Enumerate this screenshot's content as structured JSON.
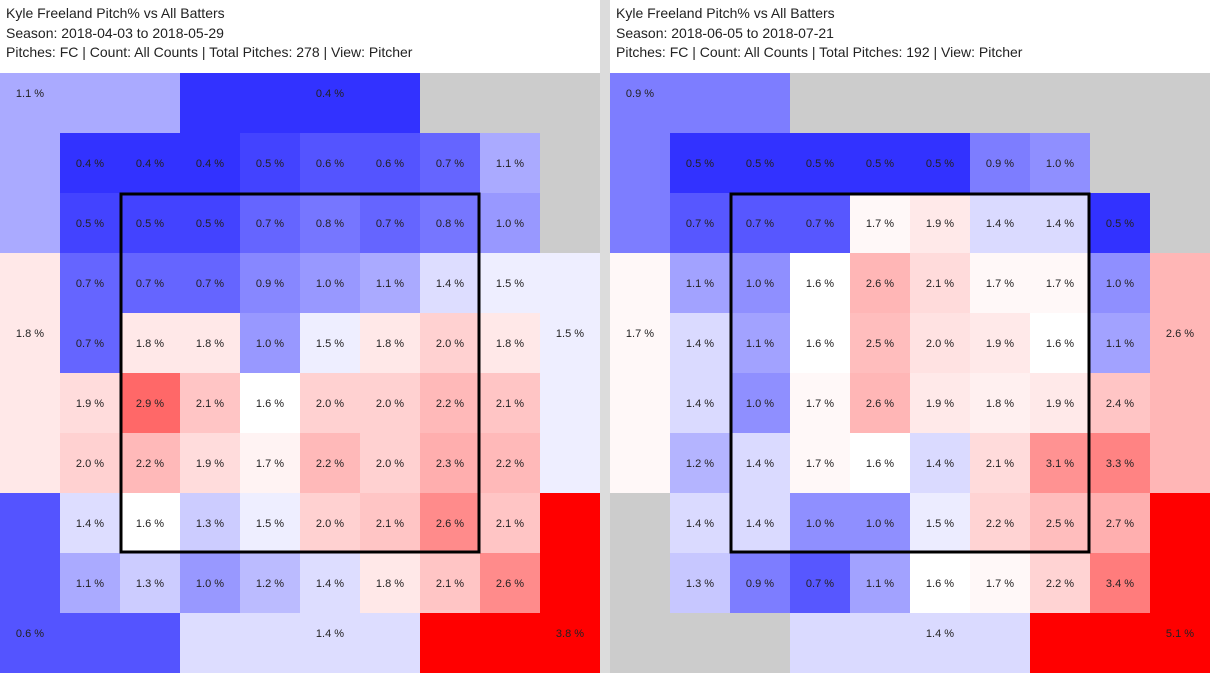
{
  "chart_data": [
    {
      "type": "heatmap",
      "title": "Kyle Freeland Pitch% vs All Batters",
      "subtitle": "Season: 2018-04-03 to 2018-05-29",
      "info": "Pitches: FC | Count: All Counts | Total Pitches: 278 | View: Pitcher",
      "unit": "%",
      "outer_zones": {
        "top_left": 1.1,
        "top_middle": 0.4,
        "top_right": null,
        "middle_left": 1.8,
        "middle_right": 1.5,
        "bottom_left": 0.6,
        "bottom_middle": 1.4,
        "bottom_right": 3.8
      },
      "grid": [
        [
          0.4,
          0.4,
          0.4,
          0.5,
          0.6,
          0.6,
          0.7,
          1.1
        ],
        [
          0.5,
          0.5,
          0.5,
          0.7,
          0.8,
          0.7,
          0.8,
          1.0
        ],
        [
          0.7,
          0.7,
          0.7,
          0.9,
          1.0,
          1.1,
          1.4,
          1.5
        ],
        [
          0.7,
          1.8,
          1.8,
          1.0,
          1.5,
          1.8,
          2.0,
          1.8
        ],
        [
          1.9,
          2.9,
          2.1,
          1.6,
          2.0,
          2.0,
          2.2,
          2.1
        ],
        [
          2.0,
          2.2,
          1.9,
          1.7,
          2.2,
          2.0,
          2.3,
          2.2
        ],
        [
          1.4,
          1.6,
          1.3,
          1.5,
          2.0,
          2.1,
          2.6,
          2.1
        ],
        [
          1.1,
          1.3,
          1.0,
          1.2,
          1.4,
          1.8,
          2.1,
          2.6
        ]
      ]
    },
    {
      "type": "heatmap",
      "title": "Kyle Freeland Pitch% vs All Batters",
      "subtitle": "Season: 2018-06-05 to 2018-07-21",
      "info": "Pitches: FC | Count: All Counts | Total Pitches: 192 | View: Pitcher",
      "unit": "%",
      "outer_zones": {
        "top_left": 0.9,
        "top_middle": null,
        "top_right": null,
        "middle_left": 1.7,
        "middle_right": 2.6,
        "bottom_left": null,
        "bottom_middle": 1.4,
        "bottom_right": 5.1
      },
      "grid": [
        [
          0.5,
          0.5,
          0.5,
          0.5,
          0.5,
          0.9,
          1.0,
          null
        ],
        [
          0.7,
          0.7,
          0.7,
          1.7,
          1.9,
          1.4,
          1.4,
          0.5
        ],
        [
          1.1,
          1.0,
          1.6,
          2.6,
          2.1,
          1.7,
          1.7,
          1.0
        ],
        [
          1.4,
          1.1,
          1.6,
          2.5,
          2.0,
          1.9,
          1.6,
          1.1
        ],
        [
          1.4,
          1.0,
          1.7,
          2.6,
          1.9,
          1.8,
          1.9,
          2.4
        ],
        [
          1.2,
          1.4,
          1.7,
          1.6,
          1.4,
          2.1,
          3.1,
          3.3
        ],
        [
          1.4,
          1.4,
          1.0,
          1.0,
          1.5,
          2.2,
          2.5,
          2.7
        ],
        [
          1.3,
          0.9,
          0.7,
          1.1,
          1.6,
          1.7,
          2.2,
          3.4
        ]
      ]
    }
  ]
}
